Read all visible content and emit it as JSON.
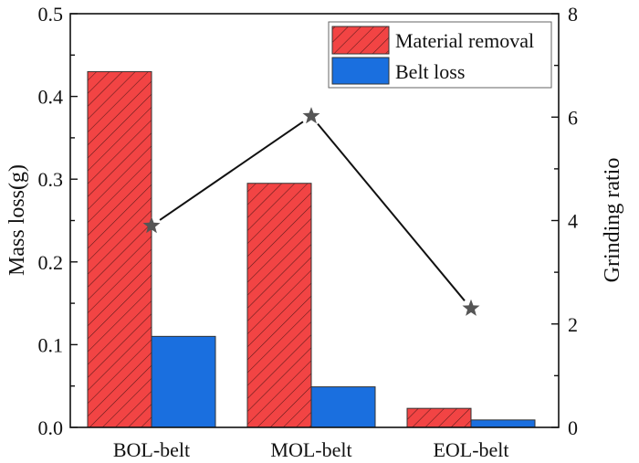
{
  "chart_data": {
    "type": "bar",
    "title": "",
    "categories": [
      "BOL-belt",
      "MOL-belt",
      "EOL-belt"
    ],
    "series": [
      {
        "name": "Material removal",
        "axis": "left",
        "kind": "bar",
        "color": "#f24444",
        "hatch": true,
        "values": [
          0.43,
          0.295,
          0.023
        ]
      },
      {
        "name": "Belt loss",
        "axis": "left",
        "kind": "bar",
        "color": "#1a6fdf",
        "hatch": false,
        "values": [
          0.11,
          0.049,
          0.009
        ]
      },
      {
        "name": "Grinding ratio",
        "axis": "right",
        "kind": "line",
        "marker": "star",
        "color": "#555555",
        "values": [
          3.9,
          6.02,
          2.3
        ]
      }
    ],
    "ylabel": "Mass loss(g)",
    "ylabel_right": "Grinding ratio",
    "xlabel": "",
    "ylim": [
      0,
      0.5
    ],
    "ylim_right": [
      0,
      8
    ],
    "yticks": [
      "0.0",
      "0.1",
      "0.2",
      "0.3",
      "0.4",
      "0.5"
    ],
    "yticks_right": [
      "0",
      "2",
      "4",
      "6",
      "8"
    ],
    "legend": {
      "position": "top-right",
      "entries": [
        "Material removal",
        "Belt loss"
      ]
    },
    "grid": false
  }
}
